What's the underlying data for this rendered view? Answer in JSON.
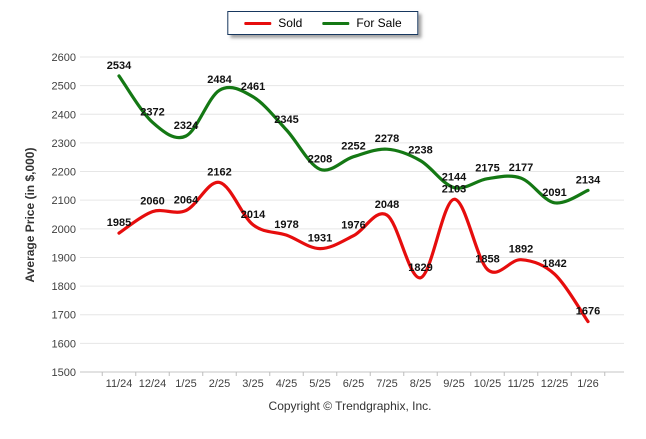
{
  "chart_data": {
    "type": "line",
    "title": "",
    "x": [
      "11/24",
      "12/24",
      "1/25",
      "2/25",
      "3/25",
      "4/25",
      "5/25",
      "6/25",
      "7/25",
      "8/25",
      "9/25",
      "10/25",
      "11/25",
      "12/25",
      "1/26"
    ],
    "series": [
      {
        "name": "Sold",
        "color": "#e60d0d",
        "values": [
          1985,
          2060,
          2064,
          2162,
          2014,
          1978,
          1931,
          1976,
          2048,
          1829,
          2103,
          1858,
          1892,
          1842,
          1676
        ]
      },
      {
        "name": "For Sale",
        "color": "#147814",
        "values": [
          2534,
          2372,
          2324,
          2484,
          2461,
          2345,
          2208,
          2252,
          2278,
          2238,
          2144,
          2175,
          2177,
          2091,
          2134
        ]
      }
    ],
    "xlabel": "",
    "ylabel": "Average Price (in $,000)",
    "ylim": [
      1500,
      2600
    ],
    "yticks": [
      1500,
      1600,
      1700,
      1800,
      1900,
      2000,
      2100,
      2200,
      2300,
      2400,
      2500,
      2600
    ],
    "grid": true,
    "legend_position": "top-center",
    "label_color": "#111111",
    "axis_text_color": "#404040",
    "grid_color": "#e6e6e6",
    "baseline_color": "#c4c4c4"
  },
  "footer": {
    "copyright": "Copyright © Trendgraphix, Inc."
  }
}
